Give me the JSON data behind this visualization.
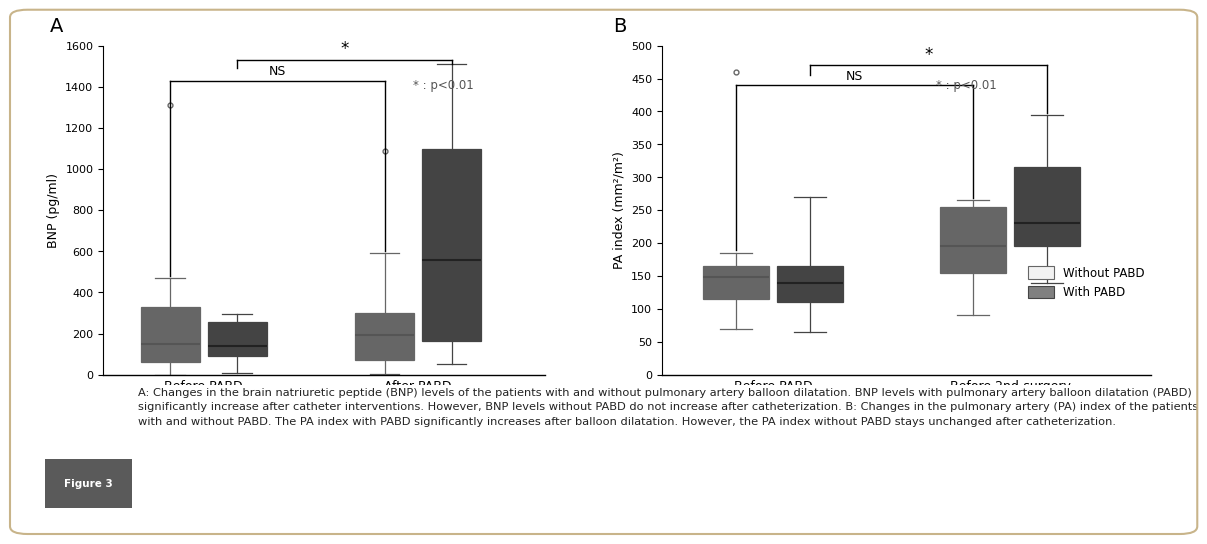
{
  "panel_A": {
    "title": "A",
    "ylabel": "BNP (pg/ml)",
    "xlabel_ticks": [
      "Before PABD",
      "After PABD"
    ],
    "ylim": [
      0,
      1600
    ],
    "yticks": [
      0,
      200,
      400,
      600,
      800,
      1000,
      1200,
      1400,
      1600
    ],
    "groups": {
      "Before PABD": {
        "without": {
          "whislo": 0,
          "q1": 60,
          "median": 150,
          "q3": 330,
          "whishi": 470,
          "fliers": [
            1310
          ]
        },
        "with": {
          "whislo": 10,
          "q1": 90,
          "median": 140,
          "q3": 255,
          "whishi": 295,
          "fliers": []
        }
      },
      "After PABD": {
        "without": {
          "whislo": 5,
          "q1": 70,
          "median": 195,
          "q3": 300,
          "whishi": 590,
          "fliers": [
            1090
          ]
        },
        "with": {
          "whislo": 50,
          "q1": 165,
          "median": 560,
          "q3": 1100,
          "whishi": 1510,
          "fliers": []
        }
      }
    }
  },
  "panel_B": {
    "title": "B",
    "ylabel": "PA index (mm²/m²)",
    "xlabel_ticks": [
      "Before PABD",
      "Before 2nd-surgery"
    ],
    "ylim": [
      0,
      500
    ],
    "yticks": [
      0,
      50,
      100,
      150,
      200,
      250,
      300,
      350,
      400,
      450,
      500
    ],
    "groups": {
      "Before PABD": {
        "without": {
          "whislo": 70,
          "q1": 115,
          "median": 148,
          "q3": 165,
          "whishi": 185,
          "fliers": [
            460
          ]
        },
        "with": {
          "whislo": 65,
          "q1": 110,
          "median": 140,
          "q3": 165,
          "whishi": 270,
          "fliers": []
        }
      },
      "Before 2nd-surgery": {
        "without": {
          "whislo": 90,
          "q1": 155,
          "median": 195,
          "q3": 255,
          "whishi": 265,
          "fliers": []
        },
        "with": {
          "whislo": 140,
          "q1": 195,
          "median": 230,
          "q3": 315,
          "whishi": 395,
          "fliers": []
        }
      }
    }
  },
  "color_without": "#f2f2f2",
  "color_with": "#808080",
  "edge_without": "#666666",
  "edge_with": "#444444",
  "median_without": "#555555",
  "median_with": "#222222",
  "legend_labels": [
    "Without PABD",
    "With PABD"
  ],
  "background_color": "#ffffff",
  "caption_text": "A: Changes in the brain natriuretic peptide (BNP) levels of the patients with and without pulmonary artery balloon dilatation. BNP levels with pulmonary artery balloon dilatation (PABD) significantly increase after catheter interventions. However, BNP levels without PABD do not increase after catheterization. B: Changes in the pulmonary artery (PA) index of the patients with and without PABD. The PA index with PABD significantly increases after balloon dilatation. However, the PA index without PABD stays unchanged after catheterization."
}
